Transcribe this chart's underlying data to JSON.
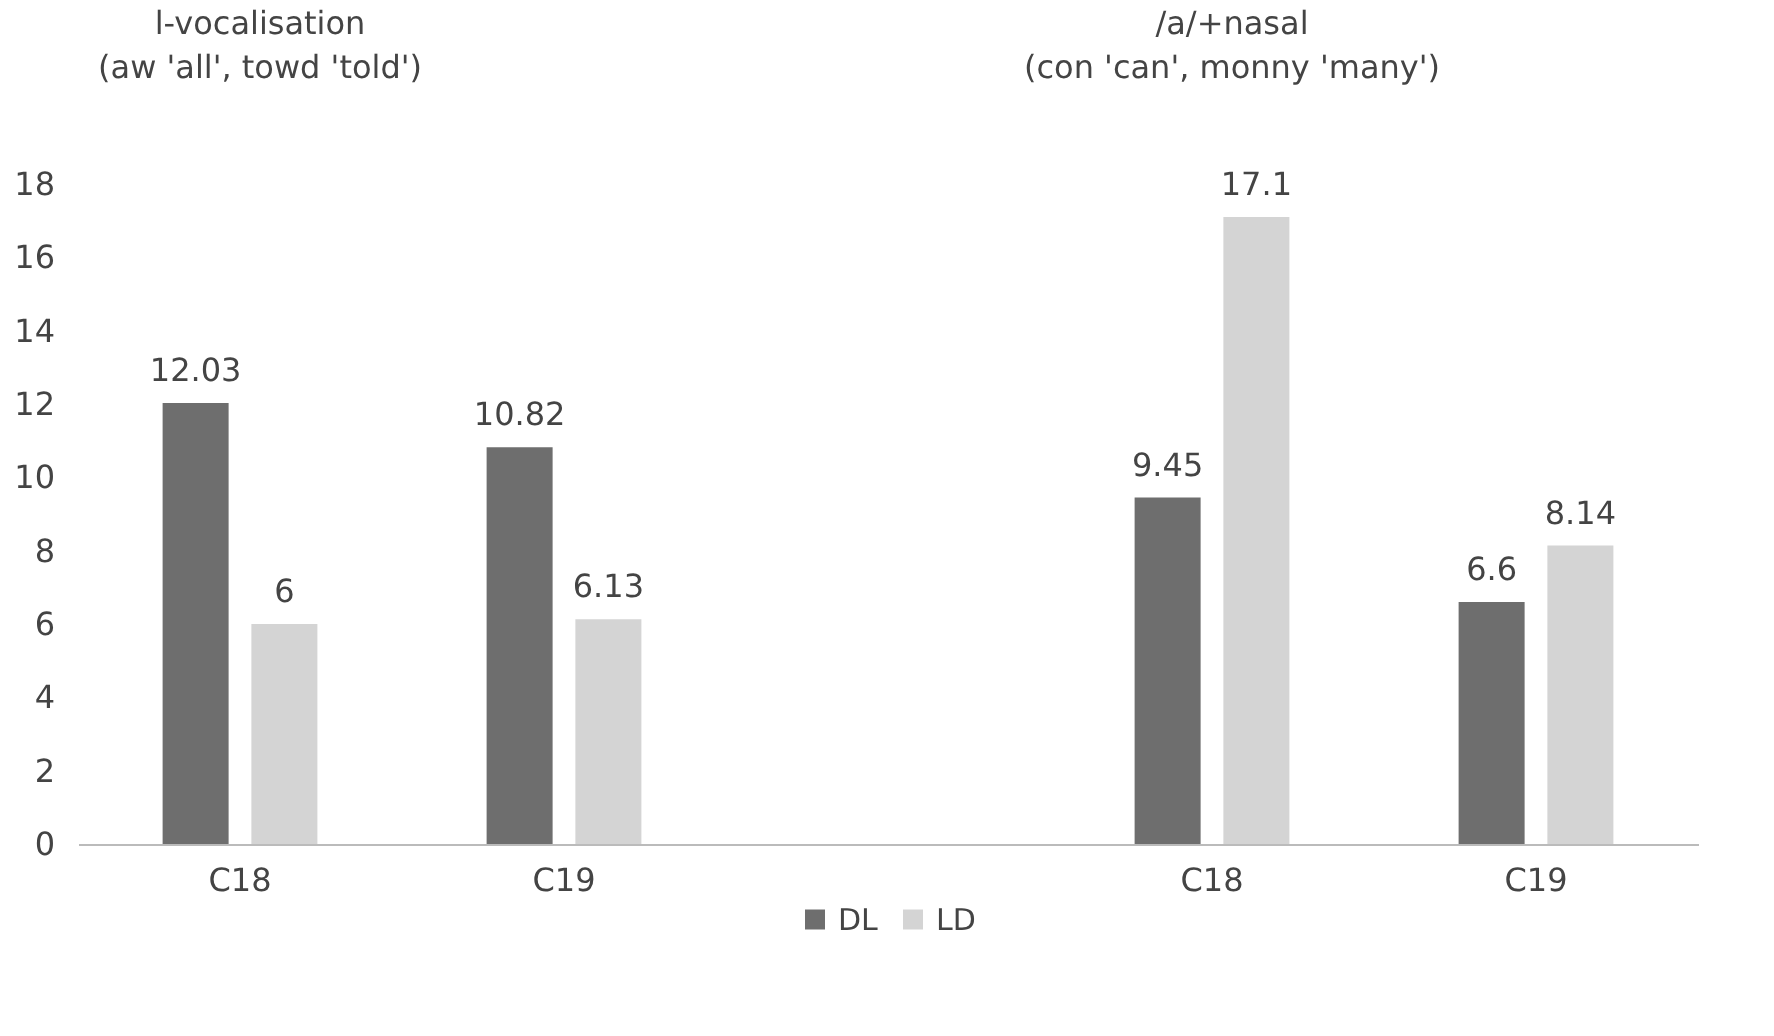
{
  "chart_data": {
    "type": "bar",
    "categories": [
      "C18",
      "C19",
      null,
      "C18",
      "C19"
    ],
    "series": [
      {
        "name": "DL",
        "color": "#6e6e6e",
        "values": [
          12.03,
          10.82,
          null,
          9.45,
          6.6
        ]
      },
      {
        "name": "LD",
        "color": "#d4d4d4",
        "values": [
          6,
          6.13,
          null,
          17.1,
          8.14
        ]
      }
    ],
    "ylim": [
      0,
      18
    ],
    "yticks": [
      0,
      2,
      4,
      6,
      8,
      10,
      12,
      14,
      16,
      18
    ],
    "grid": false,
    "legend": "bottom",
    "data_labels": true,
    "annotations": [
      "l-vocalisation\n(aw 'all', towd 'told')",
      "/a/+nasal\n(con 'can', monny 'many')"
    ]
  }
}
